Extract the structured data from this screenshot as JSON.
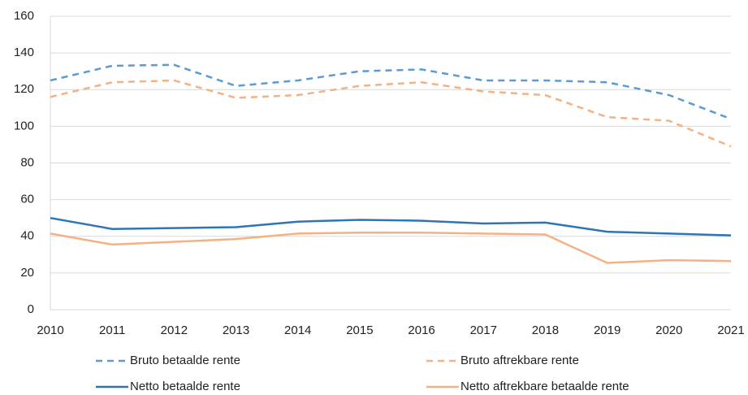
{
  "chart_data": {
    "type": "line",
    "x": [
      2010,
      2011,
      2012,
      2013,
      2014,
      2015,
      2016,
      2017,
      2018,
      2019,
      2020,
      2021
    ],
    "xlim": [
      2010,
      2021
    ],
    "xticks": [
      2010,
      2011,
      2012,
      2013,
      2014,
      2015,
      2016,
      2017,
      2018,
      2019,
      2020,
      2021
    ],
    "ylim": [
      0,
      160
    ],
    "yticks": [
      0,
      20,
      40,
      60,
      80,
      100,
      120,
      140,
      160
    ],
    "grid": true,
    "series": [
      {
        "name": "Bruto betaalde rente",
        "color": "#5b9bd5",
        "style": "dashed",
        "values": [
          125,
          133,
          133.5,
          122,
          125,
          130,
          131,
          125,
          125,
          124,
          117,
          104
        ]
      },
      {
        "name": "Bruto aftrekbare rente",
        "color": "#f4b183",
        "style": "dashed",
        "values": [
          116,
          124,
          125,
          115.5,
          117,
          122,
          124,
          119,
          117,
          105,
          103,
          89
        ]
      },
      {
        "name": "Netto betaalde  rente",
        "color": "#2e75b6",
        "style": "solid",
        "values": [
          50,
          44,
          44.5,
          45,
          48,
          49,
          48.5,
          47,
          47.5,
          42.5,
          41.5,
          40.5
        ]
      },
      {
        "name": "Netto aftrekbare betaalde rente",
        "color": "#f4b183",
        "style": "solid",
        "values": [
          41.5,
          35.5,
          37,
          38.5,
          41.5,
          42,
          42,
          41.5,
          41,
          25.5,
          27,
          26.5
        ]
      }
    ]
  }
}
